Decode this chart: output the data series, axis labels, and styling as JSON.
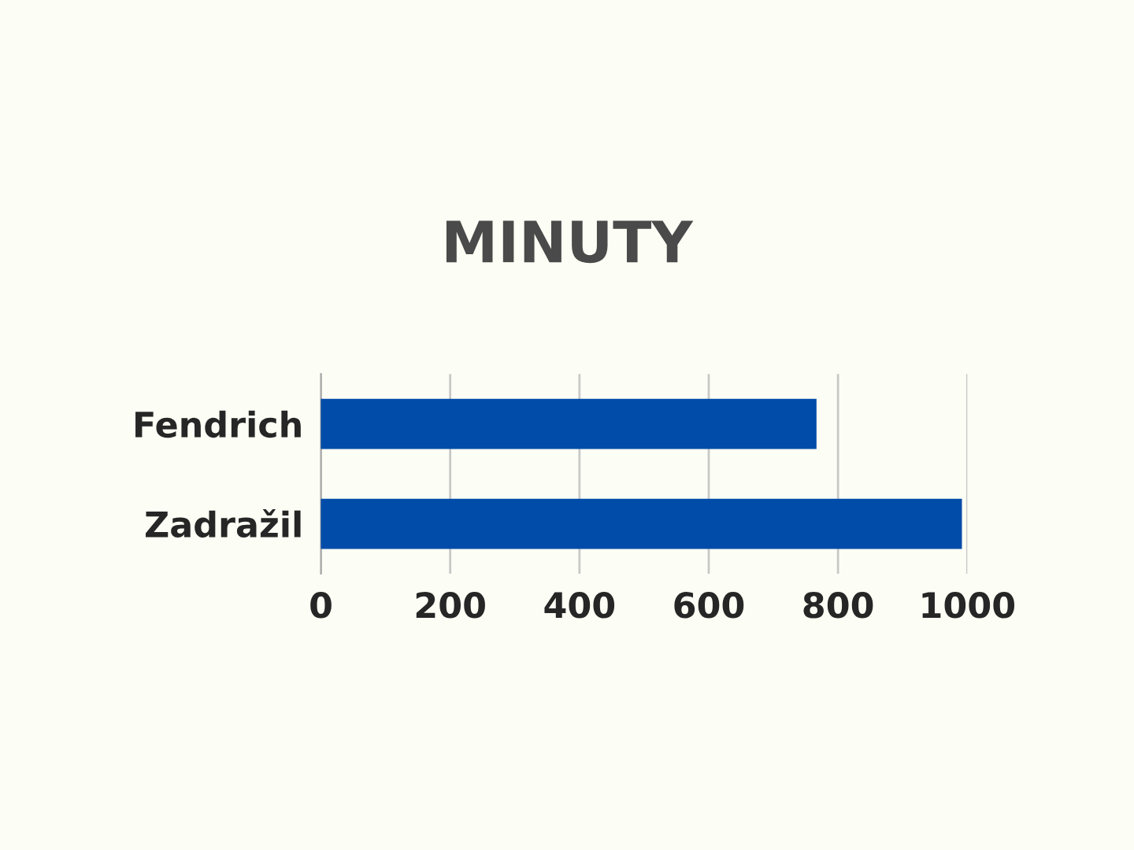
{
  "chart_data": {
    "type": "bar",
    "orientation": "horizontal",
    "title": "MINUTY",
    "categories": [
      "Fendrich",
      "Zadražil"
    ],
    "series": [
      {
        "color": "#024ca9",
        "values": [
          765,
          990
        ]
      }
    ],
    "xlim": [
      0,
      1000
    ],
    "xticks": [
      0,
      200,
      400,
      600,
      800,
      1000
    ],
    "grid": "x",
    "legend": false
  }
}
